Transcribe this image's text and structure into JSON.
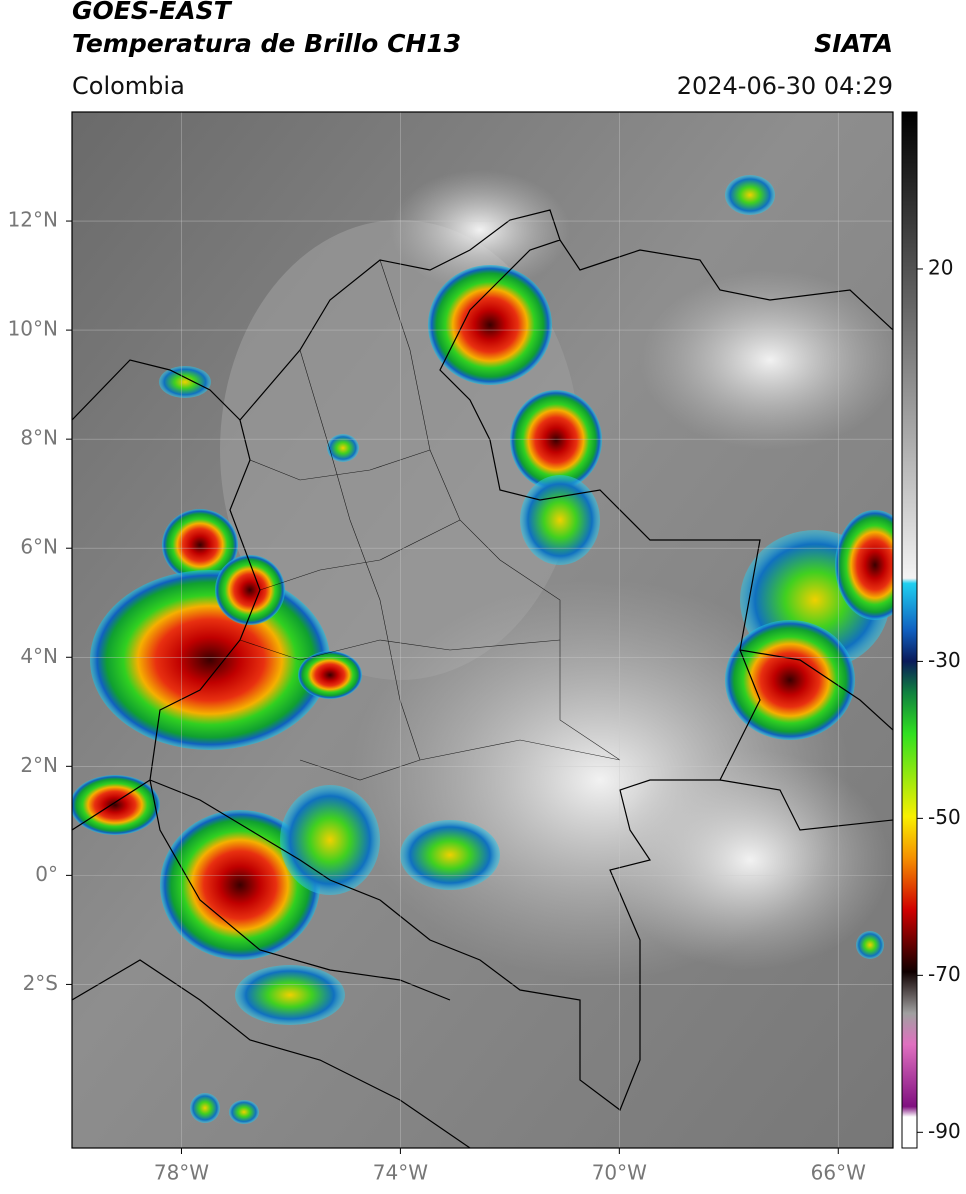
{
  "header": {
    "satellite": "GOES-EAST",
    "product": "Temperatura de Brillo CH13",
    "source": "SIATA",
    "region": "Colombia",
    "datetime": "2024-06-30 04:29"
  },
  "map": {
    "xlim": [
      -80,
      -65
    ],
    "ylim": [
      -5,
      14
    ],
    "xticks": [
      {
        "value": -78,
        "label": "78°W"
      },
      {
        "value": -74,
        "label": "74°W"
      },
      {
        "value": -70,
        "label": "70°W"
      },
      {
        "value": -66,
        "label": "66°W"
      }
    ],
    "yticks": [
      {
        "value": 12,
        "label": "12°N"
      },
      {
        "value": 10,
        "label": "10°N"
      },
      {
        "value": 8,
        "label": "8°N"
      },
      {
        "value": 6,
        "label": "6°N"
      },
      {
        "value": 4,
        "label": "4°N"
      },
      {
        "value": 2,
        "label": "2°N"
      },
      {
        "value": 0,
        "label": "0°"
      },
      {
        "value": -2,
        "label": "2°S"
      }
    ],
    "grid": true
  },
  "colorbar": {
    "lim": [
      -92,
      40
    ],
    "ticks": [
      20,
      -30,
      -50,
      -70,
      -90
    ]
  }
}
